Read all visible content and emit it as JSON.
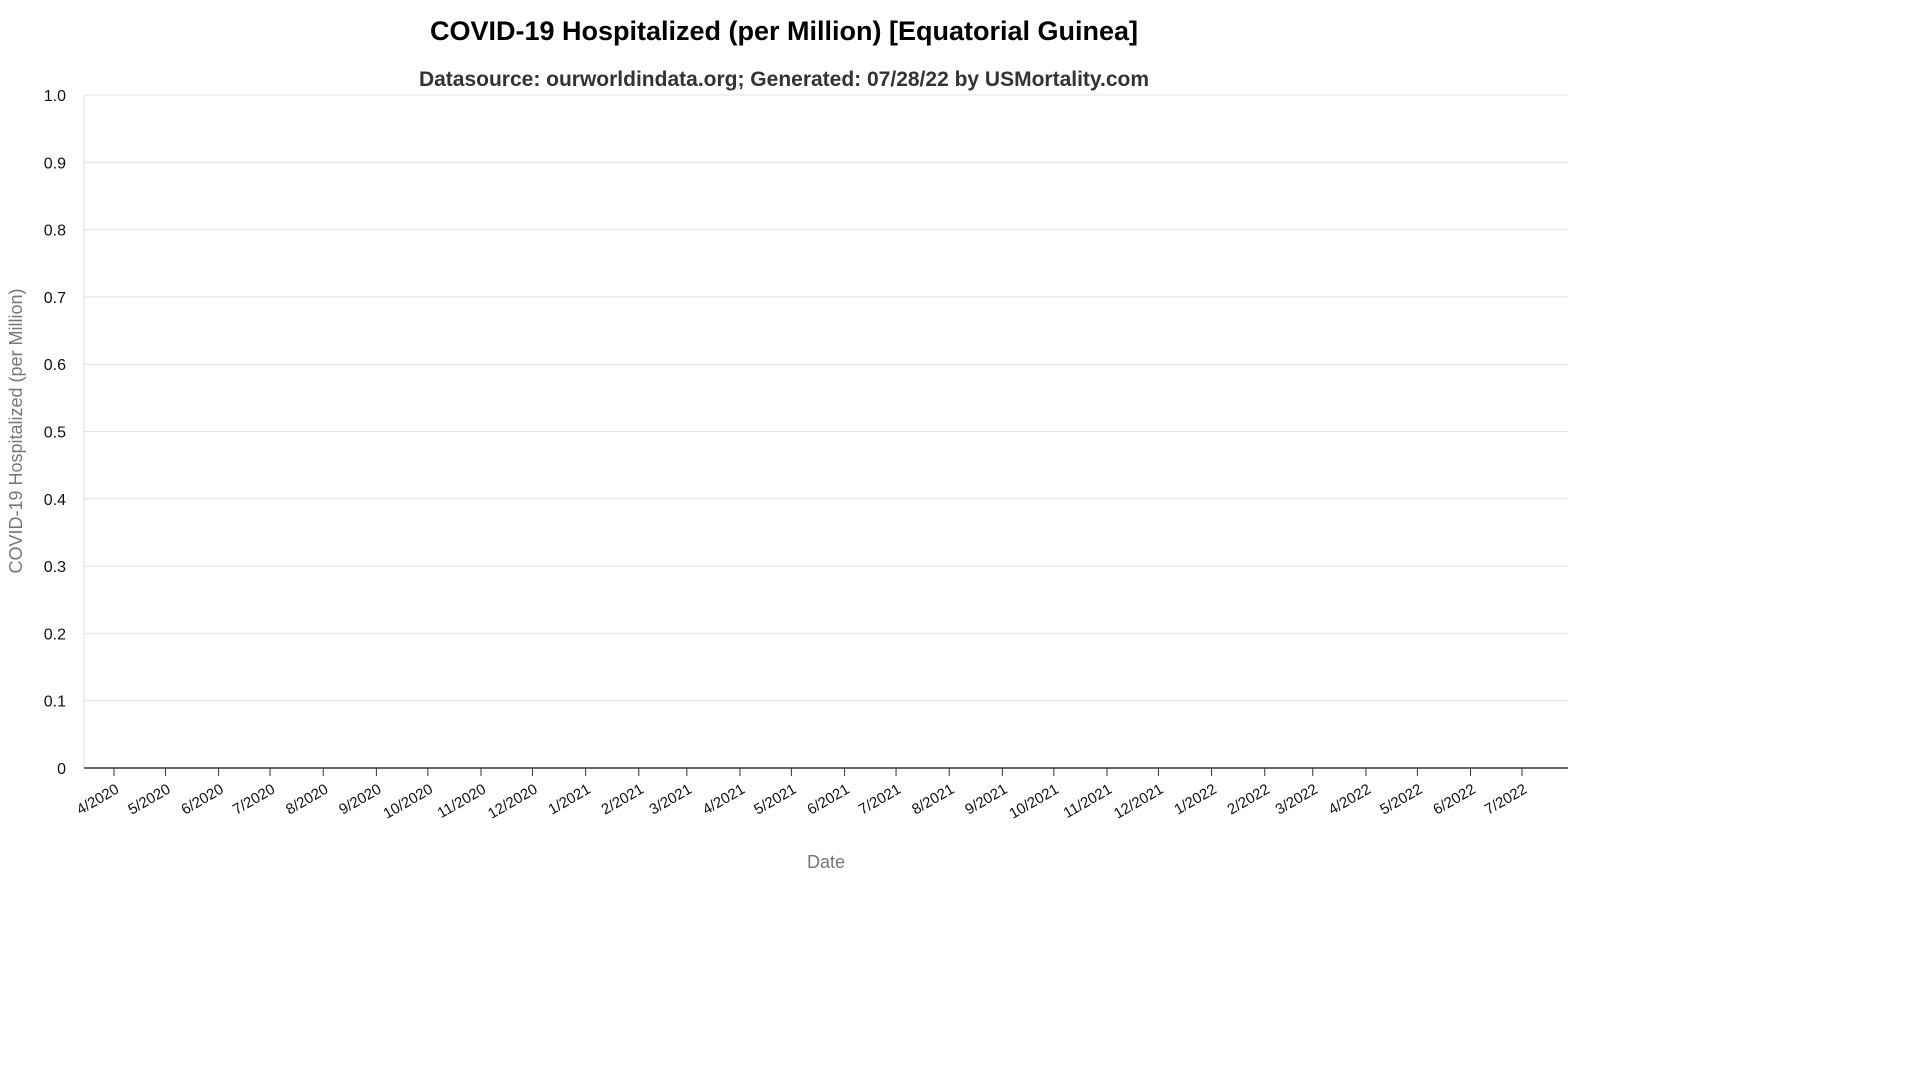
{
  "chart_data": {
    "type": "line",
    "title": "COVID-19 Hospitalized (per Million) [Equatorial Guinea]",
    "subtitle": "Datasource: ourworldindata.org; Generated: 07/28/22 by USMortality.com",
    "xlabel": "Date",
    "ylabel": "COVID-19 Hospitalized (per Million)",
    "ylim": [
      0,
      1
    ],
    "yticks": [
      "0",
      "0.1",
      "0.2",
      "0.3",
      "0.4",
      "0.5",
      "0.6",
      "0.7",
      "0.8",
      "0.9",
      "1.0"
    ],
    "xticks": [
      "4/2020",
      "5/2020",
      "6/2020",
      "7/2020",
      "8/2020",
      "9/2020",
      "10/2020",
      "11/2020",
      "12/2020",
      "1/2021",
      "2/2021",
      "3/2021",
      "4/2021",
      "5/2021",
      "6/2021",
      "7/2021",
      "8/2021",
      "9/2021",
      "10/2021",
      "11/2021",
      "12/2021",
      "1/2022",
      "2/2022",
      "3/2022",
      "4/2022",
      "5/2022",
      "6/2022",
      "7/2022"
    ],
    "grid": true,
    "series": []
  }
}
